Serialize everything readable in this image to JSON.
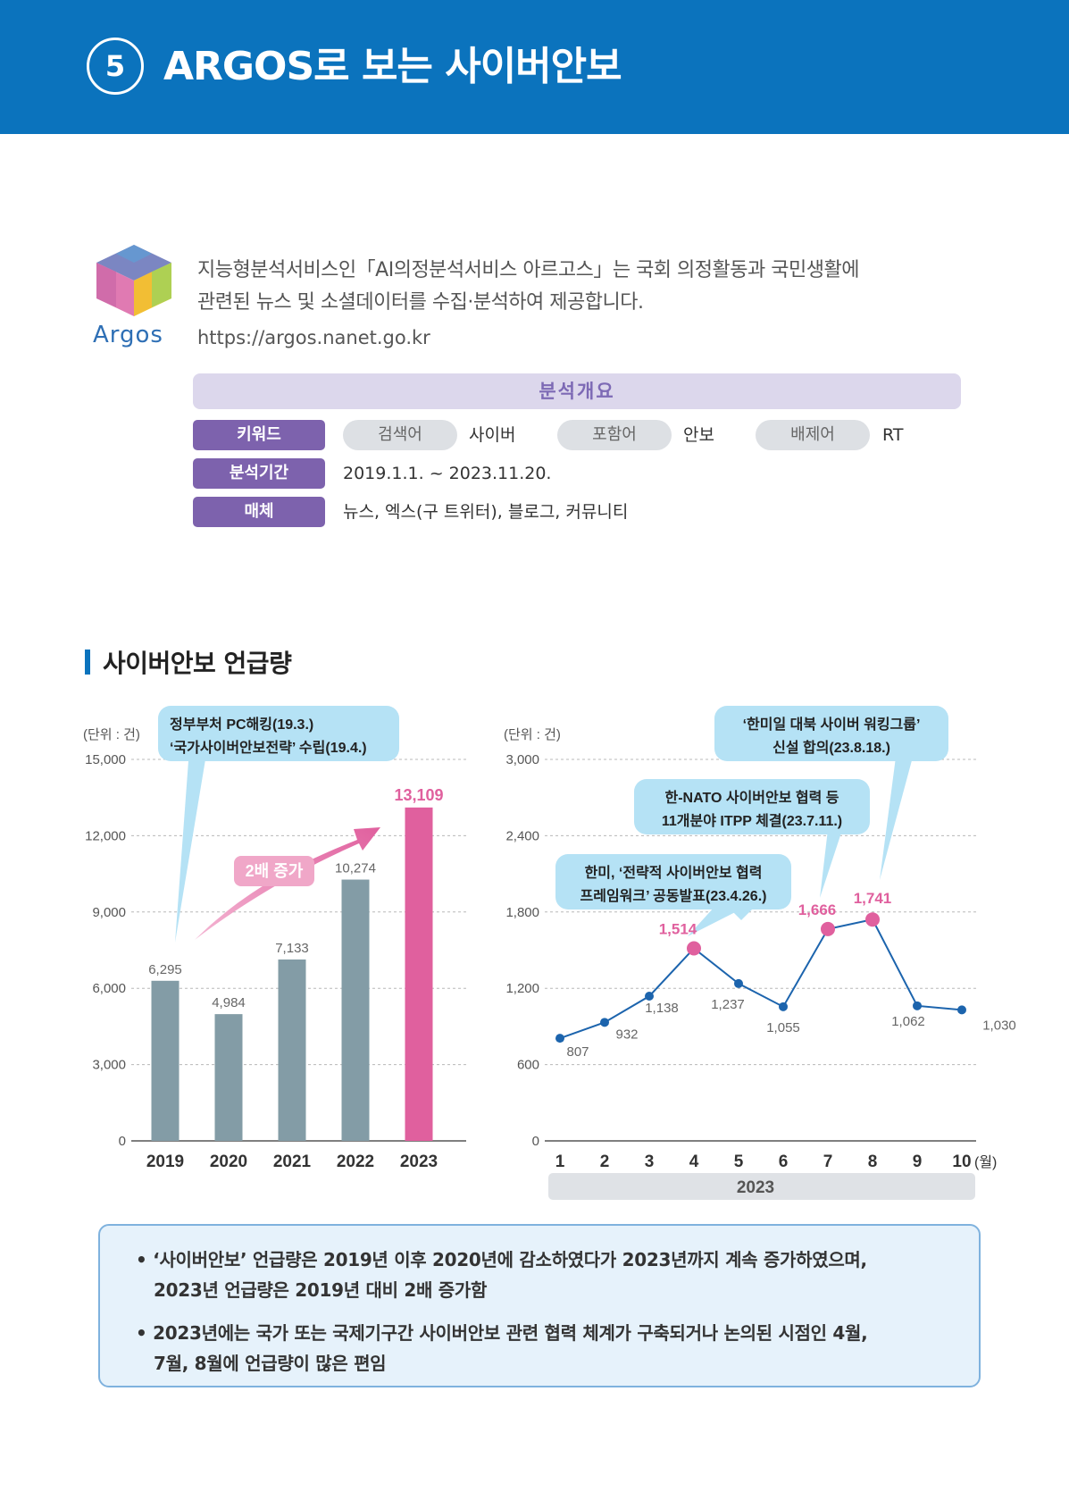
{
  "header": {
    "number": "5",
    "title": "ARGOS로 보는 사이버안보"
  },
  "intro": {
    "logo_text": "Argos",
    "line1": "지능형분석서비스인「AI의정분석서비스 아르고스」는 국회 의정활동과 국민생활에",
    "line2": "관련된 뉴스 및 소셜데이터를 수집·분석하여 제공합니다.",
    "url": "https://argos.nanet.go.kr"
  },
  "overview": {
    "title": "분석개요",
    "keyword_label": "키워드",
    "search_label": "검색어",
    "search_value": "사이버",
    "include_label": "포함어",
    "include_value": "안보",
    "exclude_label": "배제어",
    "exclude_value": "RT",
    "period_label": "분석기간",
    "period_value": "2019.1.1. ~ 2023.11.20.",
    "media_label": "매체",
    "media_value": "뉴스, 엑스(구 트위터), 블로그, 커뮤니티"
  },
  "section": {
    "title": "사이버안보 언급량"
  },
  "chart_data": [
    {
      "type": "bar",
      "unit_label": "(단위 : 건)",
      "categories": [
        "2019",
        "2020",
        "2021",
        "2022",
        "2023"
      ],
      "values": [
        6295,
        4984,
        7133,
        10274,
        13109
      ],
      "value_labels": [
        "6,295",
        "4,984",
        "7,133",
        "10,274",
        "13,109"
      ],
      "yticks": [
        "0",
        "3,000",
        "6,000",
        "9,000",
        "12,000",
        "15,000"
      ],
      "ylim": [
        0,
        15000
      ],
      "colors": {
        "bar": "#839ca6",
        "highlight": "#e0609e"
      },
      "callout": [
        "정부부처 PC해킹(19.3.)",
        "‘국가사이버안보전략’ 수립(19.4.)"
      ],
      "arrow_label": "2배 증가"
    },
    {
      "type": "line",
      "unit_label": "(단위 : 건)",
      "x": [
        "1",
        "2",
        "3",
        "4",
        "5",
        "6",
        "7",
        "8",
        "9",
        "10"
      ],
      "x_unit": "(월)",
      "group_label": "2023",
      "values": [
        807,
        932,
        1138,
        1514,
        1237,
        1055,
        1666,
        1741,
        1062,
        1030
      ],
      "value_labels": [
        "807",
        "932",
        "1,138",
        "1,514",
        "1,237",
        "1,055",
        "1,666",
        "1,741",
        "1,062",
        "1,030"
      ],
      "highlight": [
        false,
        false,
        false,
        true,
        false,
        false,
        true,
        true,
        false,
        false
      ],
      "yticks": [
        "0",
        "600",
        "1,200",
        "1,800",
        "2,400",
        "3,000"
      ],
      "ylim": [
        0,
        3000
      ],
      "colors": {
        "line": "#1c64ad",
        "highlight": "#e0609e"
      },
      "callouts": [
        [
          "‘한미일 대북 사이버 워킹그룹’",
          "신설 합의(23.8.18.)"
        ],
        [
          "한-NATO  사이버안보 협력 등",
          "11개분야 ITPP 체결(23.7.11.)"
        ],
        [
          "한미, ‘전략적 사이버안보 협력",
          "프레임워크’ 공동발표(23.4.26.)"
        ]
      ]
    }
  ],
  "summary": {
    "b1_line1": "• ‘사이버안보’ 언급량은 2019년 이후 2020년에 감소하였다가 2023년까지 계속 증가하였으며,",
    "b1_line2": "2023년 언급량은 2019년 대비 2배 증가함",
    "b2_line1": "• 2023년에는 국가 또는 국제기구간 사이버안보 관련 협력 체계가 구축되거나 논의된 시점인 4월,",
    "b2_line2": "7월, 8월에 언급량이 많은 편임"
  }
}
